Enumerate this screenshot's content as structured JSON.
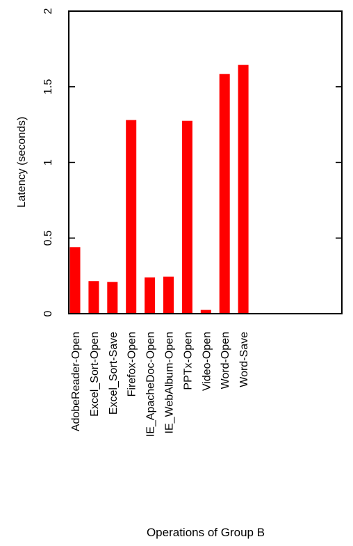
{
  "chart_data": {
    "type": "bar",
    "title": "",
    "xlabel": "Operations of Group B",
    "ylabel": "Latency (seconds)",
    "categories": [
      "AdobeReader-Open",
      "Excel_Sort-Open",
      "Excel_Sort-Save",
      "Firefox-Open",
      "IE_ApacheDoc-Open",
      "IE_WebAlbum-Open",
      "PPTx-Open",
      "Video-Open",
      "Word-Open",
      "Word-Save"
    ],
    "values": [
      0.44,
      0.215,
      0.21,
      1.28,
      0.24,
      0.245,
      1.275,
      0.025,
      1.585,
      1.645
    ],
    "ylim": [
      0,
      2
    ],
    "yticks": [
      0,
      0.5,
      1,
      1.5,
      2
    ],
    "ytick_labels": [
      "0",
      "0.5",
      "1",
      "1.5",
      "2"
    ],
    "grid": false,
    "bar_color": "#ff0000"
  }
}
